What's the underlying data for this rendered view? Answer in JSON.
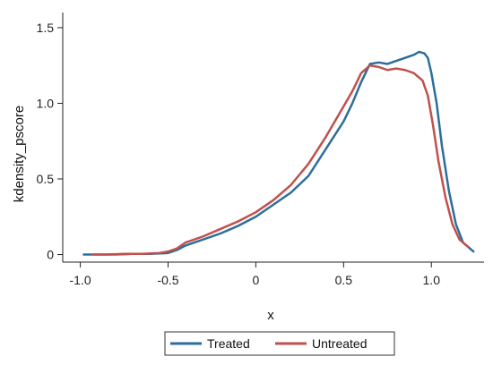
{
  "chart_data": {
    "type": "line",
    "title": "",
    "xlabel": "x",
    "ylabel": "kdensity_pscore",
    "xlim": [
      -1.1,
      1.3
    ],
    "ylim": [
      -0.05,
      1.6
    ],
    "x_ticks": [
      -1.0,
      -0.5,
      0,
      0.5,
      1.0
    ],
    "x_tick_labels": [
      "-1.0",
      "-0.5",
      "0",
      "0.5",
      "1.0"
    ],
    "y_ticks": [
      0,
      0.5,
      1.0,
      1.5
    ],
    "y_tick_labels": [
      "0",
      "0.5",
      "1.0",
      "1.5"
    ],
    "grid": false,
    "legend_position": "bottom",
    "series": [
      {
        "name": "Treated",
        "color": "#2c6e9b",
        "points": [
          [
            -0.98,
            0.0
          ],
          [
            -0.9,
            0.0
          ],
          [
            -0.8,
            0.0
          ],
          [
            -0.7,
            0.005
          ],
          [
            -0.6,
            0.005
          ],
          [
            -0.5,
            0.01
          ],
          [
            -0.45,
            0.03
          ],
          [
            -0.4,
            0.06
          ],
          [
            -0.3,
            0.1
          ],
          [
            -0.2,
            0.14
          ],
          [
            -0.1,
            0.19
          ],
          [
            0.0,
            0.25
          ],
          [
            0.1,
            0.33
          ],
          [
            0.2,
            0.41
          ],
          [
            0.3,
            0.52
          ],
          [
            0.4,
            0.7
          ],
          [
            0.5,
            0.88
          ],
          [
            0.55,
            1.0
          ],
          [
            0.6,
            1.14
          ],
          [
            0.65,
            1.26
          ],
          [
            0.7,
            1.27
          ],
          [
            0.75,
            1.26
          ],
          [
            0.8,
            1.28
          ],
          [
            0.85,
            1.3
          ],
          [
            0.9,
            1.32
          ],
          [
            0.93,
            1.34
          ],
          [
            0.96,
            1.33
          ],
          [
            0.98,
            1.3
          ],
          [
            1.0,
            1.2
          ],
          [
            1.03,
            1.0
          ],
          [
            1.06,
            0.72
          ],
          [
            1.1,
            0.42
          ],
          [
            1.14,
            0.2
          ],
          [
            1.18,
            0.08
          ],
          [
            1.22,
            0.04
          ],
          [
            1.24,
            0.02
          ]
        ]
      },
      {
        "name": "Untreated",
        "color": "#c0504d",
        "points": [
          [
            -0.93,
            0.0
          ],
          [
            -0.85,
            0.0
          ],
          [
            -0.75,
            0.005
          ],
          [
            -0.65,
            0.005
          ],
          [
            -0.55,
            0.01
          ],
          [
            -0.5,
            0.02
          ],
          [
            -0.45,
            0.04
          ],
          [
            -0.4,
            0.08
          ],
          [
            -0.3,
            0.12
          ],
          [
            -0.2,
            0.17
          ],
          [
            -0.1,
            0.22
          ],
          [
            0.0,
            0.28
          ],
          [
            0.1,
            0.36
          ],
          [
            0.2,
            0.46
          ],
          [
            0.3,
            0.6
          ],
          [
            0.4,
            0.78
          ],
          [
            0.5,
            0.98
          ],
          [
            0.55,
            1.08
          ],
          [
            0.6,
            1.2
          ],
          [
            0.65,
            1.25
          ],
          [
            0.7,
            1.24
          ],
          [
            0.75,
            1.22
          ],
          [
            0.8,
            1.23
          ],
          [
            0.85,
            1.22
          ],
          [
            0.9,
            1.2
          ],
          [
            0.95,
            1.15
          ],
          [
            0.98,
            1.05
          ],
          [
            1.01,
            0.85
          ],
          [
            1.04,
            0.62
          ],
          [
            1.08,
            0.38
          ],
          [
            1.12,
            0.2
          ],
          [
            1.16,
            0.1
          ],
          [
            1.2,
            0.06
          ],
          [
            1.21,
            0.05
          ]
        ]
      }
    ]
  }
}
